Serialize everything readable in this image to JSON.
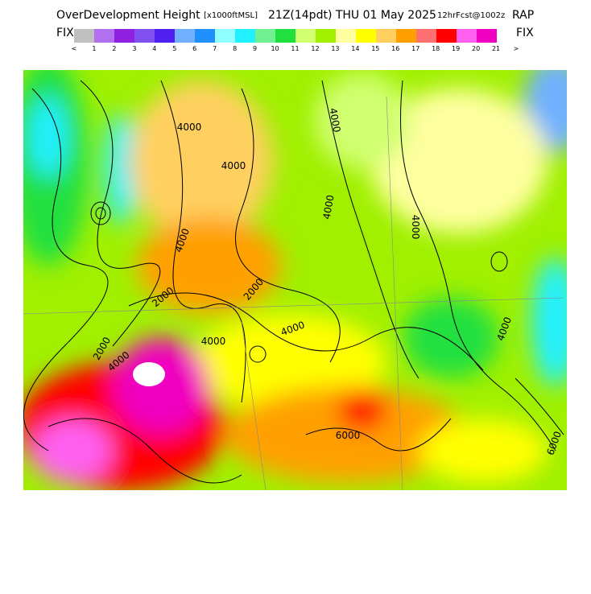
{
  "header": {
    "title": "OverDevelopment Height",
    "units": "[x1000ftMSL]",
    "time": "21Z(14pdt) THU 01 May 2025",
    "forecast": "12hrFcst@1002z",
    "model": "RAP"
  },
  "colorbar": {
    "left": "FIX",
    "right": "FIX",
    "colors": [
      "#c0c0c0",
      "#b070f0",
      "#9020e0",
      "#8050f0",
      "#5020f0",
      "#70b0ff",
      "#2090ff",
      "#90ffff",
      "#20f0ff",
      "#70f090",
      "#20e040",
      "#d0ff70",
      "#a0f000",
      "#ffffa0",
      "#ffff00",
      "#ffd060",
      "#ffa000",
      "#ff7070",
      "#ff0000",
      "#ff60f0",
      "#f000c0"
    ],
    "labels": [
      "<",
      "1",
      "2",
      "3",
      "4",
      "5",
      "6",
      "7",
      "8",
      "9",
      "10",
      "11",
      "12",
      "13",
      "14",
      "15",
      "16",
      "17",
      "18",
      "19",
      "20",
      "21",
      ">"
    ]
  },
  "map": {
    "contour_labels": [
      "4000",
      "4000",
      "4000",
      "4000",
      "4000",
      "2000",
      "2000",
      "4000",
      "4000",
      "4000",
      "2000",
      "6000",
      "4000",
      "6000",
      "4000"
    ]
  }
}
